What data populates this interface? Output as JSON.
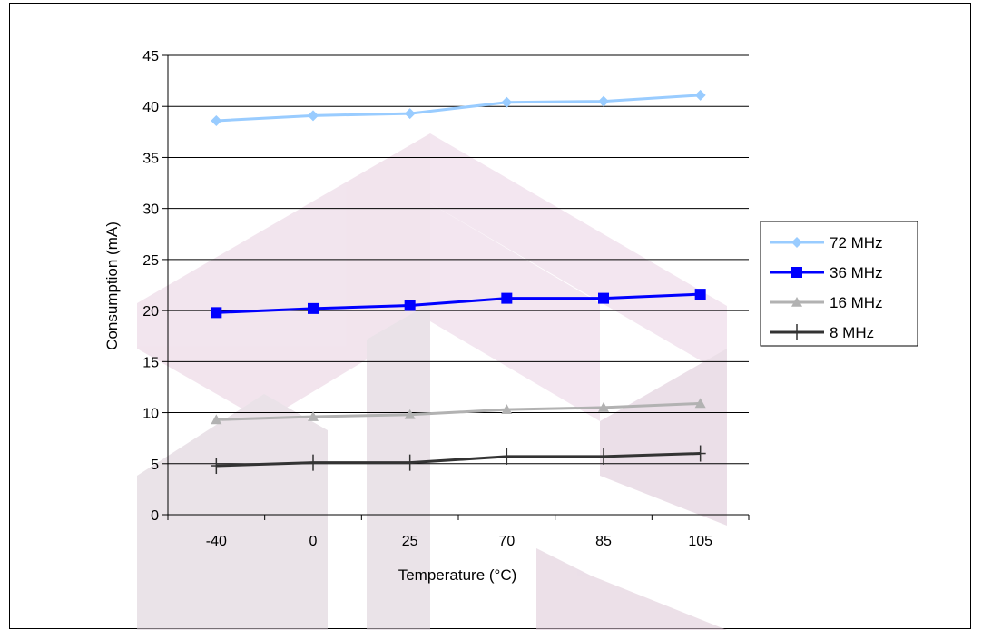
{
  "chart_data": {
    "type": "line",
    "title": "",
    "xlabel": "Temperature (°C)",
    "ylabel": "Consumption (mA)",
    "categories": [
      "-40",
      "0",
      "25",
      "70",
      "85",
      "105"
    ],
    "ylim": [
      0,
      45
    ],
    "yticks": [
      0,
      5,
      10,
      15,
      20,
      25,
      30,
      35,
      40,
      45
    ],
    "grid": "horizontal",
    "legend_position": "right",
    "series": [
      {
        "name": "72 MHz",
        "values": [
          38.6,
          39.1,
          39.3,
          40.4,
          40.5,
          41.1
        ],
        "color": "#99ccff",
        "marker": "diamond"
      },
      {
        "name": "36 MHz",
        "values": [
          19.8,
          20.2,
          20.5,
          21.2,
          21.2,
          21.6
        ],
        "color": "#0000ff",
        "marker": "square"
      },
      {
        "name": "16 MHz",
        "values": [
          9.3,
          9.6,
          9.8,
          10.3,
          10.5,
          10.9
        ],
        "color": "#b2b2b2",
        "marker": "triangle"
      },
      {
        "name": "8 MHz",
        "values": [
          4.8,
          5.1,
          5.1,
          5.7,
          5.7,
          6.0
        ],
        "color": "#333333",
        "marker": "plus"
      }
    ]
  }
}
